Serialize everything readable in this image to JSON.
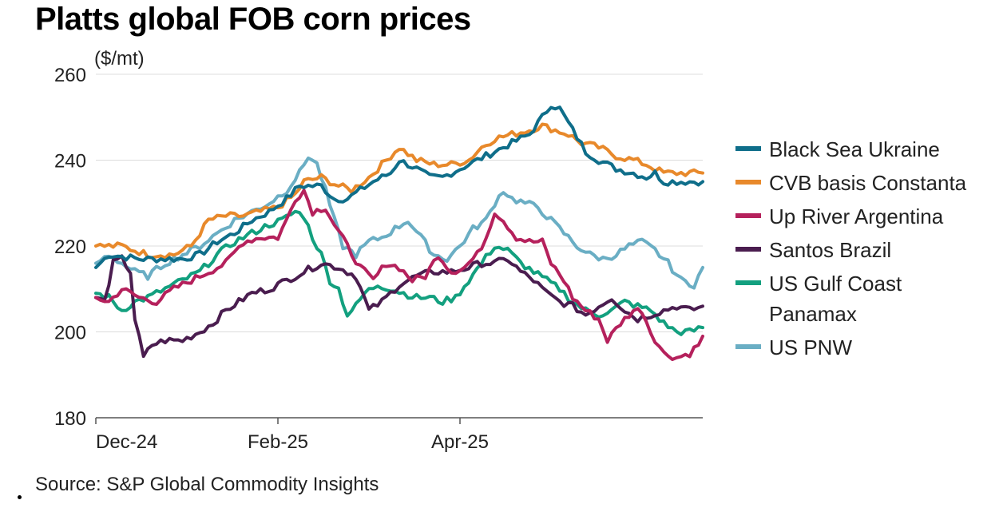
{
  "title": "Platts global FOB corn prices",
  "source": "Source: S&P Global Commodity Insights",
  "chart_data": {
    "type": "line",
    "unit": "($/mt)",
    "ylim": [
      180,
      260
    ],
    "y_ticks": [
      180,
      200,
      220,
      240,
      260
    ],
    "x_ticks": [
      {
        "label": "Dec-24",
        "index": 0
      },
      {
        "label": "Feb-25",
        "index": 42
      },
      {
        "label": "Apr-25",
        "index": 84
      }
    ],
    "n_points": 124,
    "grid": true,
    "legend_position": "right",
    "series": [
      {
        "name": "Black Sea Ukraine",
        "color": "#0f6e8a",
        "anchors": [
          [
            0,
            215
          ],
          [
            3,
            218
          ],
          [
            10,
            217
          ],
          [
            16,
            217
          ],
          [
            20,
            217
          ],
          [
            24,
            218
          ],
          [
            28,
            221
          ],
          [
            32,
            223
          ],
          [
            36,
            226
          ],
          [
            40,
            228
          ],
          [
            44,
            231
          ],
          [
            47,
            234
          ],
          [
            52,
            234
          ],
          [
            55,
            231
          ],
          [
            58,
            231
          ],
          [
            61,
            233
          ],
          [
            64,
            235
          ],
          [
            68,
            237
          ],
          [
            70,
            240
          ],
          [
            74,
            238
          ],
          [
            77,
            236
          ],
          [
            80,
            236
          ],
          [
            84,
            238
          ],
          [
            88,
            240
          ],
          [
            92,
            242
          ],
          [
            96,
            244
          ],
          [
            100,
            246
          ],
          [
            103,
            250
          ],
          [
            105,
            253
          ],
          [
            107,
            252
          ],
          [
            110,
            247
          ],
          [
            113,
            242
          ],
          [
            116,
            240
          ],
          [
            120,
            238
          ],
          [
            124,
            237
          ],
          [
            127,
            236
          ],
          [
            129,
            237
          ],
          [
            131,
            235
          ]
        ]
      },
      {
        "name": "CVB basis Constanta",
        "color": "#e8892b",
        "anchors": [
          [
            0,
            220
          ],
          [
            6,
            220
          ],
          [
            12,
            218
          ],
          [
            18,
            218
          ],
          [
            22,
            220
          ],
          [
            26,
            226
          ],
          [
            30,
            227
          ],
          [
            34,
            227
          ],
          [
            38,
            228
          ],
          [
            42,
            229
          ],
          [
            46,
            232
          ],
          [
            48,
            235
          ],
          [
            52,
            236
          ],
          [
            56,
            234
          ],
          [
            59,
            233
          ],
          [
            63,
            236
          ],
          [
            67,
            240
          ],
          [
            70,
            243
          ],
          [
            74,
            240
          ],
          [
            78,
            239
          ],
          [
            82,
            239
          ],
          [
            86,
            240
          ],
          [
            89,
            243
          ],
          [
            92,
            245
          ],
          [
            96,
            246
          ],
          [
            100,
            247
          ],
          [
            103,
            248
          ],
          [
            106,
            247
          ],
          [
            109,
            246
          ],
          [
            112,
            244
          ],
          [
            116,
            243
          ],
          [
            120,
            241
          ],
          [
            124,
            240
          ],
          [
            127,
            239
          ],
          [
            129,
            238
          ],
          [
            131,
            237
          ]
        ]
      },
      {
        "name": "Up River Argentina",
        "color": "#b5215c",
        "anchors": [
          [
            0,
            208
          ],
          [
            3,
            207
          ],
          [
            6,
            210
          ],
          [
            10,
            208
          ],
          [
            14,
            207
          ],
          [
            18,
            210
          ],
          [
            22,
            212
          ],
          [
            26,
            214
          ],
          [
            30,
            216
          ],
          [
            34,
            221
          ],
          [
            38,
            222
          ],
          [
            42,
            222
          ],
          [
            44,
            226
          ],
          [
            46,
            231
          ],
          [
            48,
            233
          ],
          [
            50,
            228
          ],
          [
            53,
            229
          ],
          [
            55,
            225
          ],
          [
            58,
            220
          ],
          [
            61,
            215
          ],
          [
            64,
            212
          ],
          [
            67,
            216
          ],
          [
            70,
            215
          ],
          [
            73,
            212
          ],
          [
            76,
            213
          ],
          [
            79,
            218
          ],
          [
            82,
            214
          ],
          [
            85,
            215
          ],
          [
            88,
            218
          ],
          [
            90,
            222
          ],
          [
            92,
            228
          ],
          [
            94,
            226
          ],
          [
            97,
            222
          ],
          [
            100,
            221
          ],
          [
            103,
            221
          ],
          [
            105,
            216
          ],
          [
            108,
            212
          ],
          [
            110,
            208
          ],
          [
            113,
            205
          ],
          [
            116,
            203
          ],
          [
            118,
            198
          ],
          [
            121,
            202
          ],
          [
            124,
            205
          ],
          [
            126,
            205
          ],
          [
            128,
            200
          ],
          [
            131,
            195
          ],
          [
            134,
            194
          ],
          [
            137,
            195
          ],
          [
            139,
            197
          ],
          [
            140,
            199
          ]
        ]
      },
      {
        "name": "Santos Brazil",
        "color": "#4a1d4f",
        "anchors": [
          [
            0,
            208
          ],
          [
            2,
            207
          ],
          [
            4,
            216
          ],
          [
            6,
            217
          ],
          [
            8,
            214
          ],
          [
            9,
            203
          ],
          [
            11,
            194
          ],
          [
            13,
            197
          ],
          [
            16,
            198
          ],
          [
            20,
            198
          ],
          [
            24,
            200
          ],
          [
            27,
            202
          ],
          [
            30,
            205
          ],
          [
            33,
            207
          ],
          [
            36,
            209
          ],
          [
            40,
            210
          ],
          [
            44,
            212
          ],
          [
            48,
            214
          ],
          [
            52,
            216
          ],
          [
            56,
            215
          ],
          [
            60,
            213
          ],
          [
            63,
            205
          ],
          [
            66,
            207
          ],
          [
            70,
            211
          ],
          [
            74,
            213
          ],
          [
            78,
            214
          ],
          [
            82,
            214
          ],
          [
            86,
            215
          ],
          [
            89,
            216
          ],
          [
            92,
            216
          ],
          [
            95,
            217
          ],
          [
            98,
            214
          ],
          [
            101,
            212
          ],
          [
            104,
            209
          ],
          [
            107,
            207
          ],
          [
            110,
            206
          ],
          [
            113,
            204
          ],
          [
            116,
            206
          ],
          [
            119,
            208
          ],
          [
            122,
            205
          ],
          [
            125,
            203
          ],
          [
            128,
            204
          ],
          [
            131,
            205
          ],
          [
            134,
            206
          ],
          [
            137,
            205
          ],
          [
            140,
            206
          ]
        ]
      },
      {
        "name": "US Gulf Coast Panamax",
        "color": "#13a07f",
        "anchors": [
          [
            0,
            209
          ],
          [
            3,
            208
          ],
          [
            6,
            205
          ],
          [
            9,
            207
          ],
          [
            12,
            208
          ],
          [
            16,
            210
          ],
          [
            20,
            212
          ],
          [
            24,
            214
          ],
          [
            28,
            218
          ],
          [
            32,
            221
          ],
          [
            36,
            223
          ],
          [
            40,
            225
          ],
          [
            43,
            226
          ],
          [
            46,
            228
          ],
          [
            48,
            227
          ],
          [
            50,
            222
          ],
          [
            52,
            218
          ],
          [
            54,
            212
          ],
          [
            56,
            210
          ],
          [
            58,
            204
          ],
          [
            60,
            206
          ],
          [
            62,
            209
          ],
          [
            65,
            211
          ],
          [
            68,
            210
          ],
          [
            71,
            209
          ],
          [
            74,
            208
          ],
          [
            77,
            208
          ],
          [
            80,
            207
          ],
          [
            83,
            208
          ],
          [
            86,
            212
          ],
          [
            89,
            216
          ],
          [
            92,
            220
          ],
          [
            95,
            219
          ],
          [
            98,
            216
          ],
          [
            101,
            214
          ],
          [
            104,
            212
          ],
          [
            107,
            210
          ],
          [
            110,
            207
          ],
          [
            113,
            205
          ],
          [
            116,
            204
          ],
          [
            119,
            205
          ],
          [
            122,
            207
          ],
          [
            125,
            206
          ],
          [
            128,
            205
          ],
          [
            131,
            202
          ],
          [
            134,
            200
          ],
          [
            137,
            200
          ],
          [
            140,
            201
          ]
        ]
      },
      {
        "name": "US PNW",
        "color": "#6aaec4",
        "anchors": [
          [
            0,
            216
          ],
          [
            3,
            218
          ],
          [
            6,
            216
          ],
          [
            9,
            214
          ],
          [
            12,
            213
          ],
          [
            16,
            216
          ],
          [
            20,
            218
          ],
          [
            24,
            220
          ],
          [
            28,
            223
          ],
          [
            32,
            226
          ],
          [
            36,
            228
          ],
          [
            40,
            230
          ],
          [
            44,
            233
          ],
          [
            47,
            237
          ],
          [
            49,
            241
          ],
          [
            51,
            239
          ],
          [
            53,
            233
          ],
          [
            55,
            226
          ],
          [
            57,
            220
          ],
          [
            60,
            218
          ],
          [
            63,
            221
          ],
          [
            66,
            222
          ],
          [
            69,
            224
          ],
          [
            72,
            226
          ],
          [
            75,
            222
          ],
          [
            78,
            218
          ],
          [
            81,
            217
          ],
          [
            84,
            220
          ],
          [
            87,
            224
          ],
          [
            90,
            226
          ],
          [
            92,
            230
          ],
          [
            94,
            233
          ],
          [
            96,
            231
          ],
          [
            99,
            230
          ],
          [
            102,
            229
          ],
          [
            105,
            226
          ],
          [
            108,
            223
          ],
          [
            111,
            220
          ],
          [
            114,
            218
          ],
          [
            117,
            217
          ],
          [
            120,
            218
          ],
          [
            123,
            220
          ],
          [
            126,
            221
          ],
          [
            129,
            219
          ],
          [
            132,
            216
          ],
          [
            135,
            212
          ],
          [
            138,
            211
          ],
          [
            140,
            215
          ]
        ]
      }
    ]
  }
}
